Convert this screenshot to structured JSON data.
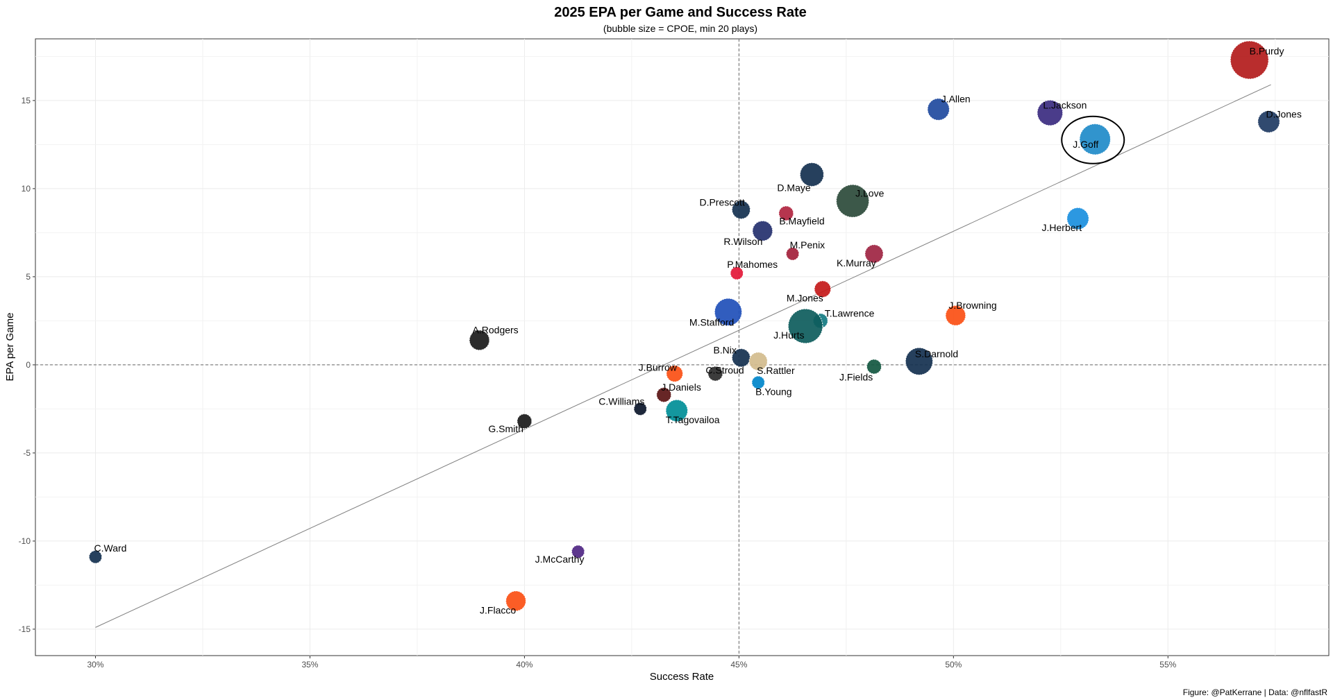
{
  "chart_data": {
    "type": "scatter",
    "title": "2025 EPA per Game and Success Rate",
    "subtitle": "(bubble size = CPOE, min 20 plays)",
    "xlabel": "Success Rate",
    "ylabel": "EPA per Game",
    "caption": "Figure: @PatKerrane | Data: @nflfastR",
    "xlim": [
      0.286,
      0.5875
    ],
    "ylim": [
      -16.5,
      18.5
    ],
    "x_ticks": [
      0.3,
      0.35,
      0.4,
      0.45,
      0.5,
      0.55
    ],
    "x_tick_labels": [
      "30%",
      "35%",
      "40%",
      "45%",
      "50%",
      "55%"
    ],
    "y_ticks": [
      -15,
      -10,
      -5,
      0,
      5,
      10,
      15
    ],
    "y_tick_labels": [
      "-15",
      "-10",
      "-5",
      "0",
      "5",
      "10",
      "15"
    ],
    "grid": true,
    "reference_lines": {
      "x": 0.45,
      "y": 0
    },
    "trend_line": {
      "x": [
        0.3,
        0.574
      ],
      "y": [
        -14.9,
        15.9
      ]
    },
    "highlight": "J.Goff",
    "points": [
      {
        "name": "B.Purdy",
        "x": 0.569,
        "y": 17.3,
        "size": 9.0,
        "color": "#b31b1b",
        "label_dx": 0,
        "label_dy": -8
      },
      {
        "name": "J.Allen",
        "x": 0.4965,
        "y": 14.5,
        "size": 4.5,
        "color": "#204a9e",
        "label_dx": 4,
        "label_dy": -10
      },
      {
        "name": "L.Jackson",
        "x": 0.5225,
        "y": 14.3,
        "size": 5.5,
        "color": "#3b2b80",
        "label_dx": -10,
        "label_dy": -6
      },
      {
        "name": "D.Jones",
        "x": 0.5735,
        "y": 13.8,
        "size": 4.5,
        "color": "#1f3b63",
        "label_dx": -4,
        "label_dy": -6
      },
      {
        "name": "J.Goff",
        "x": 0.533,
        "y": 12.8,
        "size": 7.0,
        "color": "#1f8bc9",
        "label_dx": -32,
        "label_dy": 12
      },
      {
        "name": "D.Maye",
        "x": 0.467,
        "y": 10.8,
        "size": 5.0,
        "color": "#14304f",
        "label_dx": -50,
        "label_dy": 24
      },
      {
        "name": "J.Love",
        "x": 0.4765,
        "y": 9.3,
        "size": 7.5,
        "color": "#2b4a3a",
        "label_dx": 4,
        "label_dy": -6
      },
      {
        "name": "D.Prescott",
        "x": 0.4505,
        "y": 8.8,
        "size": 3.5,
        "color": "#14304f",
        "label_dx": -60,
        "label_dy": -6
      },
      {
        "name": "B.Mayfield",
        "x": 0.461,
        "y": 8.6,
        "size": 2.5,
        "color": "#b0243f",
        "label_dx": -10,
        "label_dy": 16
      },
      {
        "name": "J.Herbert",
        "x": 0.529,
        "y": 8.3,
        "size": 4.5,
        "color": "#1a8fde",
        "label_dx": -52,
        "label_dy": 18
      },
      {
        "name": "R.Wilson",
        "x": 0.4555,
        "y": 7.6,
        "size": 4.0,
        "color": "#24306e",
        "label_dx": -56,
        "label_dy": 20
      },
      {
        "name": "K.Murray",
        "x": 0.4815,
        "y": 6.3,
        "size": 3.5,
        "color": "#9e2442",
        "label_dx": -54,
        "label_dy": 18
      },
      {
        "name": "M.Penix",
        "x": 0.4625,
        "y": 6.3,
        "size": 2.0,
        "color": "#a3203a",
        "label_dx": -4,
        "label_dy": -8
      },
      {
        "name": "P.Mahomes",
        "x": 0.4495,
        "y": 5.2,
        "size": 2.0,
        "color": "#e31837",
        "label_dx": -14,
        "label_dy": -8
      },
      {
        "name": "M.Jones",
        "x": 0.4695,
        "y": 4.3,
        "size": 3.0,
        "color": "#c41a1a",
        "label_dx": -52,
        "label_dy": 18
      },
      {
        "name": "M.Stafford",
        "x": 0.4475,
        "y": 3.0,
        "size": 6.0,
        "color": "#1f4fb8",
        "label_dx": -56,
        "label_dy": 20
      },
      {
        "name": "J.Browning",
        "x": 0.5005,
        "y": 2.8,
        "size": 4.0,
        "color": "#fb4f14",
        "label_dx": -10,
        "label_dy": -10
      },
      {
        "name": "T.Lawrence",
        "x": 0.469,
        "y": 2.5,
        "size": 2.5,
        "color": "#127b82",
        "label_dx": 6,
        "label_dy": -6
      },
      {
        "name": "J.Hurts",
        "x": 0.4655,
        "y": 2.2,
        "size": 8.0,
        "color": "#0d5c5c",
        "label_dx": -46,
        "label_dy": 18
      },
      {
        "name": "A.Rodgers",
        "x": 0.3895,
        "y": 1.4,
        "size": 4.0,
        "color": "#1a1a1a",
        "label_dx": -10,
        "label_dy": -10
      },
      {
        "name": "B.Nix",
        "x": 0.4505,
        "y": 0.4,
        "size": 3.5,
        "color": "#14304f",
        "label_dx": -40,
        "label_dy": -6
      },
      {
        "name": "S.Darnold",
        "x": 0.492,
        "y": 0.2,
        "size": 6.0,
        "color": "#14304f",
        "label_dx": -6,
        "label_dy": -6
      },
      {
        "name": "S.Rattler",
        "x": 0.4545,
        "y": 0.2,
        "size": 3.5,
        "color": "#d3bc8d",
        "label_dx": -2,
        "label_dy": 18
      },
      {
        "name": "J.Fields",
        "x": 0.4815,
        "y": -0.1,
        "size": 2.5,
        "color": "#125740",
        "label_dx": -50,
        "label_dy": 20
      },
      {
        "name": "J.Burrow",
        "x": 0.435,
        "y": -0.5,
        "size": 3.0,
        "color": "#fb4f14",
        "label_dx": -52,
        "label_dy": -4
      },
      {
        "name": "C.Stroud",
        "x": 0.4445,
        "y": -0.5,
        "size": 2.5,
        "color": "#2b2b2b",
        "label_dx": -14,
        "label_dy": 0
      },
      {
        "name": "B.Young",
        "x": 0.4545,
        "y": -1.0,
        "size": 2.0,
        "color": "#0085ca",
        "label_dx": -4,
        "label_dy": 18
      },
      {
        "name": "J.Daniels",
        "x": 0.4325,
        "y": -1.7,
        "size": 2.5,
        "color": "#5a1414",
        "label_dx": -4,
        "label_dy": -6
      },
      {
        "name": "C.Williams",
        "x": 0.427,
        "y": -2.5,
        "size": 2.0,
        "color": "#0b162a",
        "label_dx": -60,
        "label_dy": -6
      },
      {
        "name": "T.Tagovailoa",
        "x": 0.4355,
        "y": -2.6,
        "size": 4.5,
        "color": "#008e97",
        "label_dx": -16,
        "label_dy": 18
      },
      {
        "name": "G.Smith",
        "x": 0.4,
        "y": -3.2,
        "size": 2.5,
        "color": "#1a1a1a",
        "label_dx": -52,
        "label_dy": 16
      },
      {
        "name": "C.Ward",
        "x": 0.3,
        "y": -10.9,
        "size": 2.0,
        "color": "#14304f",
        "label_dx": -2,
        "label_dy": -8
      },
      {
        "name": "J.McCarthy",
        "x": 0.4125,
        "y": -10.6,
        "size": 2.0,
        "color": "#4f2683",
        "label_dx": -62,
        "label_dy": 16
      },
      {
        "name": "J.Flacco",
        "x": 0.398,
        "y": -13.4,
        "size": 4.0,
        "color": "#fb4f14",
        "label_dx": -52,
        "label_dy": 18
      }
    ]
  }
}
